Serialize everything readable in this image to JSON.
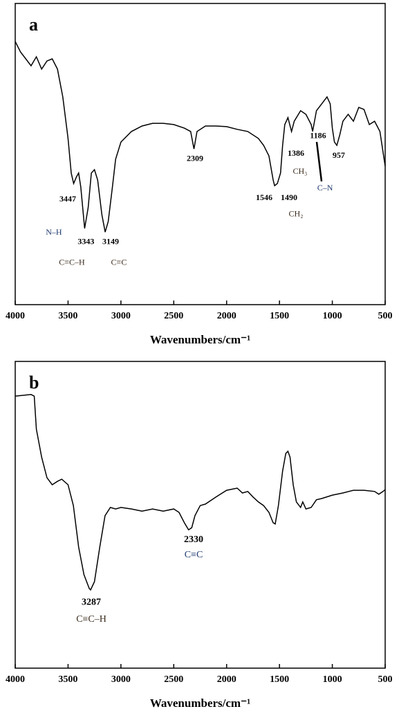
{
  "chart_data": [
    {
      "type": "line",
      "panel_label": "a",
      "xlabel": "Wavenumbers/cm⁻¹",
      "xlim": [
        4000,
        500
      ],
      "xticks": [
        4000,
        3500,
        3000,
        2500,
        2000,
        1500,
        1000,
        500
      ],
      "ylim": [
        0,
        100
      ],
      "color": "#000000",
      "x": [
        4000,
        3950,
        3900,
        3850,
        3800,
        3750,
        3700,
        3650,
        3600,
        3550,
        3500,
        3470,
        3447,
        3420,
        3400,
        3380,
        3343,
        3310,
        3280,
        3250,
        3220,
        3180,
        3149,
        3120,
        3080,
        3050,
        3000,
        2900,
        2800,
        2700,
        2600,
        2500,
        2400,
        2340,
        2309,
        2280,
        2200,
        2100,
        2000,
        1900,
        1800,
        1700,
        1650,
        1600,
        1560,
        1546,
        1520,
        1490,
        1470,
        1450,
        1420,
        1386,
        1360,
        1300,
        1250,
        1200,
        1186,
        1150,
        1100,
        1050,
        1020,
        1000,
        980,
        957,
        930,
        900,
        850,
        800,
        750,
        700,
        650,
        600,
        550,
        500
      ],
      "values": [
        87.4,
        83.9,
        81.6,
        79.3,
        82.3,
        78.2,
        80.9,
        81.6,
        78.2,
        69.0,
        55.2,
        43.7,
        40.2,
        42.5,
        43.7,
        39.1,
        25.3,
        32.2,
        43.7,
        44.8,
        41.4,
        29.9,
        24.1,
        27.6,
        39.1,
        48.3,
        54.0,
        57.5,
        59.3,
        60.2,
        60.2,
        59.8,
        58.6,
        57.5,
        51.7,
        57.5,
        59.3,
        59.3,
        59.1,
        58.2,
        57.5,
        55.2,
        52.9,
        49.4,
        41.4,
        39.5,
        40.2,
        43.7,
        52.9,
        59.8,
        62.1,
        57.5,
        60.9,
        64.4,
        63.2,
        59.8,
        57.5,
        64.4,
        66.7,
        69.0,
        66.7,
        58.6,
        54.0,
        52.9,
        56.3,
        60.9,
        63.2,
        60.9,
        65.5,
        64.8,
        59.8,
        60.9,
        57.5,
        46.0
      ],
      "annotations": [
        {
          "text": "3447",
          "x": 3503,
          "y": 34.9,
          "color": "#000000"
        },
        {
          "text": "3343",
          "x": 3330,
          "y": 20.7,
          "color": "#000000"
        },
        {
          "text": "3149",
          "x": 3097,
          "y": 20.7,
          "color": "#000000"
        },
        {
          "text": "N–H",
          "x": 3634,
          "y": 23.9,
          "color": "#1f3a6e"
        },
        {
          "text": "C≡C–H",
          "x": 3464,
          "y": 13.8,
          "color": "#3a2a1a"
        },
        {
          "text": "C≡C",
          "x": 3019,
          "y": 13.8,
          "color": "#3a2a1a"
        },
        {
          "text": "2309",
          "x": 2299,
          "y": 48.3,
          "color": "#000000"
        },
        {
          "text": "1546",
          "x": 1645,
          "y": 35.4,
          "color": "#000000"
        },
        {
          "text": "1490",
          "x": 1409,
          "y": 35.4,
          "color": "#000000"
        },
        {
          "text": "1386",
          "x": 1344,
          "y": 50.1,
          "color": "#000000"
        },
        {
          "text": "CH₃",
          "x": 1305,
          "y": 44.1,
          "color": "#3a2a1a"
        },
        {
          "text": "CH₂",
          "x": 1344,
          "y": 29.9,
          "color": "#3a2a1a"
        },
        {
          "text": "1186",
          "x": 1135,
          "y": 55.9,
          "color": "#000000"
        },
        {
          "text": "C–N",
          "x": 1069,
          "y": 38.6,
          "color": "#1f3a6e"
        },
        {
          "text": "957",
          "x": 939,
          "y": 49.4,
          "color": "#000000"
        }
      ]
    },
    {
      "type": "line",
      "panel_label": "b",
      "xlabel": "Wavenumbers/cm⁻¹",
      "xlim": [
        4000,
        500
      ],
      "xticks": [
        4000,
        3500,
        3000,
        2500,
        2000,
        1500,
        1000,
        500
      ],
      "ylim": [
        0,
        100
      ],
      "color": "#000000",
      "x": [
        4000,
        3850,
        3820,
        3800,
        3750,
        3700,
        3650,
        3600,
        3560,
        3500,
        3450,
        3400,
        3350,
        3300,
        3287,
        3250,
        3200,
        3150,
        3100,
        3050,
        3000,
        2900,
        2800,
        2700,
        2600,
        2500,
        2450,
        2400,
        2360,
        2330,
        2300,
        2250,
        2200,
        2100,
        2000,
        1900,
        1850,
        1800,
        1750,
        1700,
        1650,
        1600,
        1560,
        1540,
        1510,
        1470,
        1440,
        1420,
        1400,
        1370,
        1340,
        1300,
        1280,
        1250,
        1200,
        1150,
        1100,
        1000,
        900,
        800,
        700,
        600,
        560,
        520,
        500
      ],
      "values": [
        88.7,
        89.2,
        88.7,
        77.9,
        68.8,
        62.1,
        59.8,
        60.9,
        61.6,
        59.8,
        53.0,
        39.5,
        30.5,
        26.0,
        25.5,
        28.2,
        39.5,
        49.7,
        52.4,
        51.9,
        52.4,
        51.9,
        51.2,
        51.9,
        51.2,
        51.9,
        50.8,
        47.4,
        45.1,
        45.8,
        49.7,
        53.0,
        53.5,
        55.8,
        58.0,
        58.7,
        57.1,
        57.6,
        55.8,
        54.2,
        53.0,
        50.8,
        47.4,
        47.0,
        53.0,
        64.3,
        70.0,
        70.7,
        68.8,
        59.8,
        54.2,
        52.4,
        54.2,
        51.9,
        52.4,
        54.9,
        55.3,
        56.4,
        57.1,
        58.0,
        58.0,
        57.6,
        56.7,
        57.6,
        58.2
      ],
      "annotations": [
        {
          "text": "3287",
          "x": 3280,
          "y": 21.4,
          "color": "#000000"
        },
        {
          "text": "C≡C–H",
          "x": 3280,
          "y": 15.8,
          "color": "#3a2a1a"
        },
        {
          "text": "2330",
          "x": 2312,
          "y": 41.8,
          "color": "#000000"
        },
        {
          "text": "C≡C",
          "x": 2312,
          "y": 36.8,
          "color": "#1f3a6e"
        }
      ]
    }
  ]
}
